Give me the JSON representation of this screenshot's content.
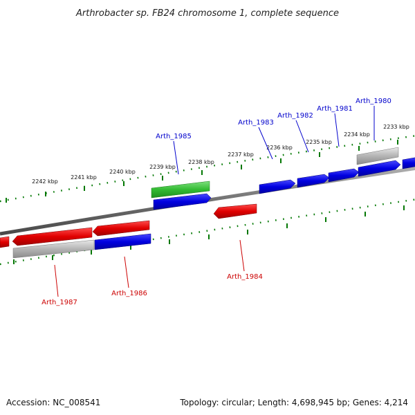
{
  "title": "Arthrobacter sp. FB24 chromosome 1, complete sequence",
  "footer": {
    "accession": "Accession: NC_008541",
    "topology": "Topology: circular; Length: 4,698,945 bp; Genes: 4,214"
  },
  "colors": {
    "forward_gene": "#0000ee",
    "reverse_gene": "#ee0000",
    "rna_gene": "#33bb33",
    "pseudo_gene": "#aaaaaa",
    "backbone": "#808080",
    "tick": "#007700",
    "forward_label": "#0000cc",
    "reverse_label": "#cc0000"
  },
  "scale_labels": [
    "2242 kbp",
    "2241 kbp",
    "2240 kbp",
    "2239 kbp",
    "2238 kbp",
    "2237 kbp",
    "2236 kbp",
    "2235 kbp",
    "2234 kbp",
    "2233 kbp"
  ],
  "gene_labels": {
    "forward": [
      "Arth_1985",
      "Arth_1983",
      "Arth_1982",
      "Arth_1981",
      "Arth_1980"
    ],
    "reverse": [
      "Arth_1987",
      "Arth_1986",
      "Arth_1984"
    ]
  }
}
